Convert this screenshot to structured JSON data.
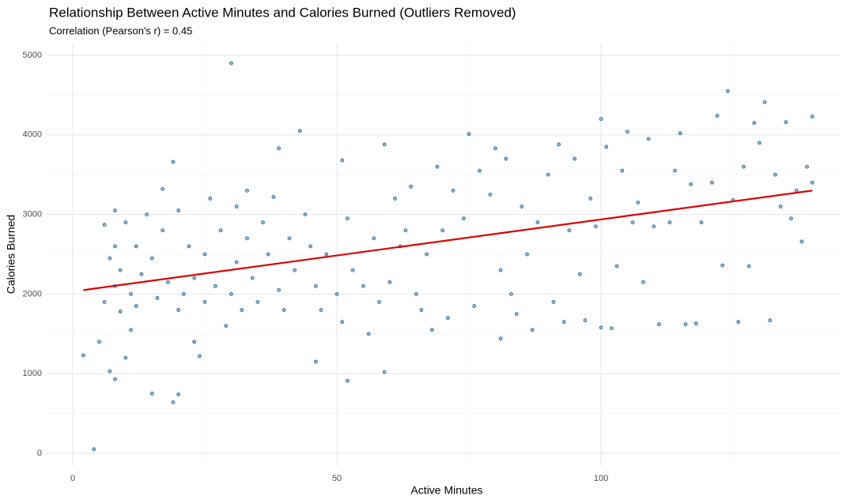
{
  "chart_data": {
    "type": "scatter",
    "title": "Relationship Between Active Minutes and Calories Burned (Outliers Removed)",
    "subtitle": "Correlation (Pearson's r) = 0.45",
    "x_label": "Active Minutes",
    "y_label": "Calories Burned",
    "xlim": [
      -5.1,
      145.2
    ],
    "ylim": [
      -159,
      5149
    ],
    "xticks": [
      0,
      50,
      100
    ],
    "yticks": [
      0,
      1000,
      2000,
      3000,
      4000,
      5000
    ],
    "x_minor_ticks": [
      25,
      75,
      125
    ],
    "y_minor_ticks": [
      500,
      1500,
      2500,
      3500,
      4500
    ],
    "grid": true,
    "color": "#4f8fc0",
    "edge_color": "#2f5f85",
    "x": [
      2,
      4,
      5,
      6,
      6,
      7,
      7,
      8,
      8,
      8,
      8,
      9,
      9,
      10,
      10,
      11,
      11,
      12,
      12,
      13,
      14,
      15,
      15,
      16,
      17,
      17,
      18,
      19,
      19,
      20,
      20,
      20,
      21,
      22,
      23,
      23,
      24,
      25,
      25,
      26,
      27,
      28,
      29,
      30,
      30,
      31,
      31,
      32,
      33,
      33,
      34,
      35,
      36,
      37,
      38,
      39,
      39,
      40,
      41,
      42,
      43,
      44,
      45,
      46,
      46,
      47,
      48,
      50,
      51,
      51,
      52,
      52,
      53,
      55,
      56,
      57,
      58,
      59,
      59,
      60,
      61,
      62,
      63,
      64,
      65,
      66,
      67,
      68,
      69,
      70,
      71,
      72,
      74,
      75,
      76,
      77,
      79,
      80,
      81,
      81,
      82,
      83,
      84,
      85,
      86,
      87,
      88,
      90,
      91,
      92,
      93,
      94,
      95,
      96,
      97,
      98,
      99,
      100,
      100,
      101,
      102,
      103,
      104,
      105,
      106,
      107,
      108,
      109,
      110,
      111,
      113,
      114,
      115,
      116,
      117,
      118,
      119,
      121,
      122,
      123,
      124,
      125,
      126,
      127,
      128,
      129,
      130,
      131,
      132,
      133,
      134,
      135,
      136,
      137,
      138,
      139,
      140,
      140
    ],
    "values": [
      1230,
      50,
      1400,
      1900,
      2870,
      2450,
      1030,
      930,
      3050,
      2600,
      2100,
      1780,
      2300,
      1200,
      2900,
      2000,
      1550,
      2600,
      1850,
      2250,
      3000,
      750,
      2450,
      1950,
      3320,
      2800,
      2150,
      640,
      3660,
      1800,
      3050,
      740,
      2000,
      2600,
      2200,
      1400,
      1220,
      2500,
      1900,
      3200,
      2100,
      2800,
      1600,
      4900,
      2000,
      3100,
      2400,
      1800,
      3300,
      2700,
      2200,
      1900,
      2900,
      2500,
      3220,
      3830,
      2050,
      1800,
      2700,
      2300,
      4050,
      3000,
      2600,
      1150,
      2100,
      1800,
      2500,
      2000,
      3680,
      1650,
      2950,
      910,
      2300,
      2100,
      1500,
      2700,
      1900,
      3880,
      1020,
      2150,
      3200,
      2600,
      2800,
      3350,
      2000,
      1800,
      2500,
      1550,
      3600,
      2800,
      1700,
      3300,
      2950,
      4010,
      1850,
      3550,
      3250,
      3830,
      1440,
      2300,
      3700,
      2000,
      1750,
      3100,
      2500,
      1550,
      2900,
      3500,
      1900,
      3880,
      1650,
      2800,
      3700,
      2250,
      1670,
      3200,
      2850,
      4200,
      1580,
      3850,
      1570,
      2350,
      3550,
      4040,
      2900,
      3150,
      2150,
      3950,
      2850,
      1620,
      2900,
      3550,
      4020,
      1620,
      3380,
      1630,
      2900,
      3400,
      4240,
      2360,
      4550,
      3180,
      1650,
      3600,
      2350,
      4150,
      3900,
      4410,
      1670,
      3500,
      3100,
      4160,
      2950,
      3300,
      2660,
      3600,
      4230,
      3400
    ],
    "trend": {
      "x": [
        2,
        140
      ],
      "y": [
        2050,
        3300
      ],
      "color": "#dd0000"
    }
  }
}
